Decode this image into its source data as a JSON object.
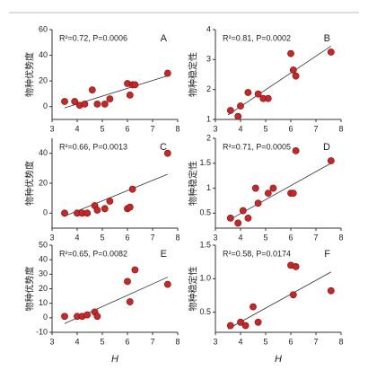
{
  "chart_data": [
    {
      "type": "scatter",
      "panel": "A",
      "annotation": "R²=0.72, P=0.0006",
      "ylabel": "物种优势度",
      "color": "#c62828",
      "x": [
        3.5,
        3.9,
        4.1,
        4.3,
        4.6,
        4.8,
        5.1,
        5.3,
        6.0,
        6.1,
        6.2,
        6.3,
        7.6
      ],
      "y": [
        4,
        4,
        1,
        2,
        13,
        2,
        2,
        6,
        18,
        9,
        17,
        17,
        26
      ],
      "fit_x": [
        3.5,
        7.6
      ],
      "fit_y": [
        -1,
        24
      ],
      "xlim": [
        3,
        8
      ],
      "xticks": [
        3,
        4,
        5,
        6,
        7,
        8
      ],
      "ylim": [
        -10,
        60
      ],
      "yticks": [
        0,
        20,
        40,
        60
      ]
    },
    {
      "type": "scatter",
      "panel": "B",
      "annotation": "R²=0.81, P=0.0002",
      "ylabel": "物种稳定性",
      "color": "#c62828",
      "x": [
        3.6,
        3.9,
        4.0,
        4.3,
        4.7,
        4.9,
        5.1,
        6.0,
        6.1,
        6.2,
        7.6
      ],
      "y": [
        1.3,
        1.1,
        1.45,
        1.9,
        1.85,
        1.7,
        1.7,
        3.2,
        2.65,
        2.45,
        3.25
      ],
      "fit_x": [
        3.5,
        7.6
      ],
      "fit_y": [
        1.15,
        3.45
      ],
      "xlim": [
        3,
        8
      ],
      "xticks": [
        3,
        4,
        5,
        6,
        7,
        8
      ],
      "ylim": [
        1,
        4
      ],
      "yticks": [
        1,
        2,
        3,
        4
      ]
    },
    {
      "type": "scatter",
      "panel": "C",
      "annotation": "R²=0.66, P=0.0013",
      "ylabel": "物种优势度",
      "color": "#c62828",
      "x": [
        3.5,
        4.0,
        4.2,
        4.4,
        4.7,
        4.8,
        5.1,
        5.3,
        6.0,
        6.1,
        6.2,
        7.6
      ],
      "y": [
        0,
        0,
        0,
        0,
        5,
        2,
        3,
        8,
        3,
        4,
        16,
        40
      ],
      "fit_x": [
        3.5,
        7.6
      ],
      "fit_y": [
        -2,
        26
      ],
      "xlim": [
        3,
        8
      ],
      "xticks": [
        3,
        4,
        5,
        6,
        7,
        8
      ],
      "ylim": [
        -10,
        50
      ],
      "yticks": [
        0,
        20,
        40
      ]
    },
    {
      "type": "scatter",
      "panel": "D",
      "annotation": "R²=0.71, P=0.0005",
      "ylabel": "物种稳定性",
      "color": "#c62828",
      "x": [
        3.6,
        3.9,
        4.1,
        4.3,
        4.6,
        4.7,
        5.1,
        5.3,
        6.0,
        6.1,
        6.2,
        7.6
      ],
      "y": [
        0.4,
        0.3,
        0.55,
        0.4,
        1.0,
        0.7,
        0.9,
        1.0,
        0.9,
        0.9,
        1.75,
        1.55
      ],
      "fit_x": [
        3.5,
        7.6
      ],
      "fit_y": [
        0.35,
        1.5
      ],
      "xlim": [
        3,
        8
      ],
      "xticks": [
        3,
        4,
        5,
        6,
        7,
        8
      ],
      "ylim": [
        0.2,
        2
      ],
      "yticks": [
        0.5,
        1,
        1.5,
        2
      ]
    },
    {
      "type": "scatter",
      "panel": "E",
      "annotation": "R²=0.65, P=0.0082",
      "ylabel": "物种优势度",
      "xlabel": "H",
      "color": "#c62828",
      "x": [
        3.5,
        4.0,
        4.2,
        4.4,
        4.7,
        4.8,
        6.0,
        6.1,
        6.3,
        7.6
      ],
      "y": [
        1,
        1,
        1,
        2,
        4,
        1,
        25,
        11,
        33,
        23
      ],
      "fit_x": [
        3.5,
        7.6
      ],
      "fit_y": [
        -4,
        28
      ],
      "xlim": [
        3,
        8
      ],
      "xticks": [
        3,
        4,
        5,
        6,
        7,
        8
      ],
      "ylim": [
        -10,
        50
      ],
      "yticks": [
        -10,
        0,
        10,
        20,
        30,
        40,
        50
      ]
    },
    {
      "type": "scatter",
      "panel": "F",
      "annotation": "R²=0.58, P=0.0174",
      "ylabel": "物种稳定性",
      "xlabel": "H",
      "color": "#c62828",
      "x": [
        3.6,
        4.0,
        4.2,
        4.5,
        4.7,
        6.0,
        6.1,
        6.2,
        7.6
      ],
      "y": [
        0.3,
        0.35,
        0.3,
        0.58,
        0.35,
        1.2,
        0.76,
        1.18,
        0.82
      ],
      "fit_x": [
        3.5,
        7.6
      ],
      "fit_y": [
        0.25,
        1.1
      ],
      "xlim": [
        3,
        8
      ],
      "xticks": [
        3,
        4,
        5,
        6,
        7,
        8
      ],
      "ylim": [
        0.2,
        1.5
      ],
      "yticks": [
        0.5,
        {
          "value": 1,
          "label": "1.0"
        },
        1.5
      ]
    }
  ]
}
